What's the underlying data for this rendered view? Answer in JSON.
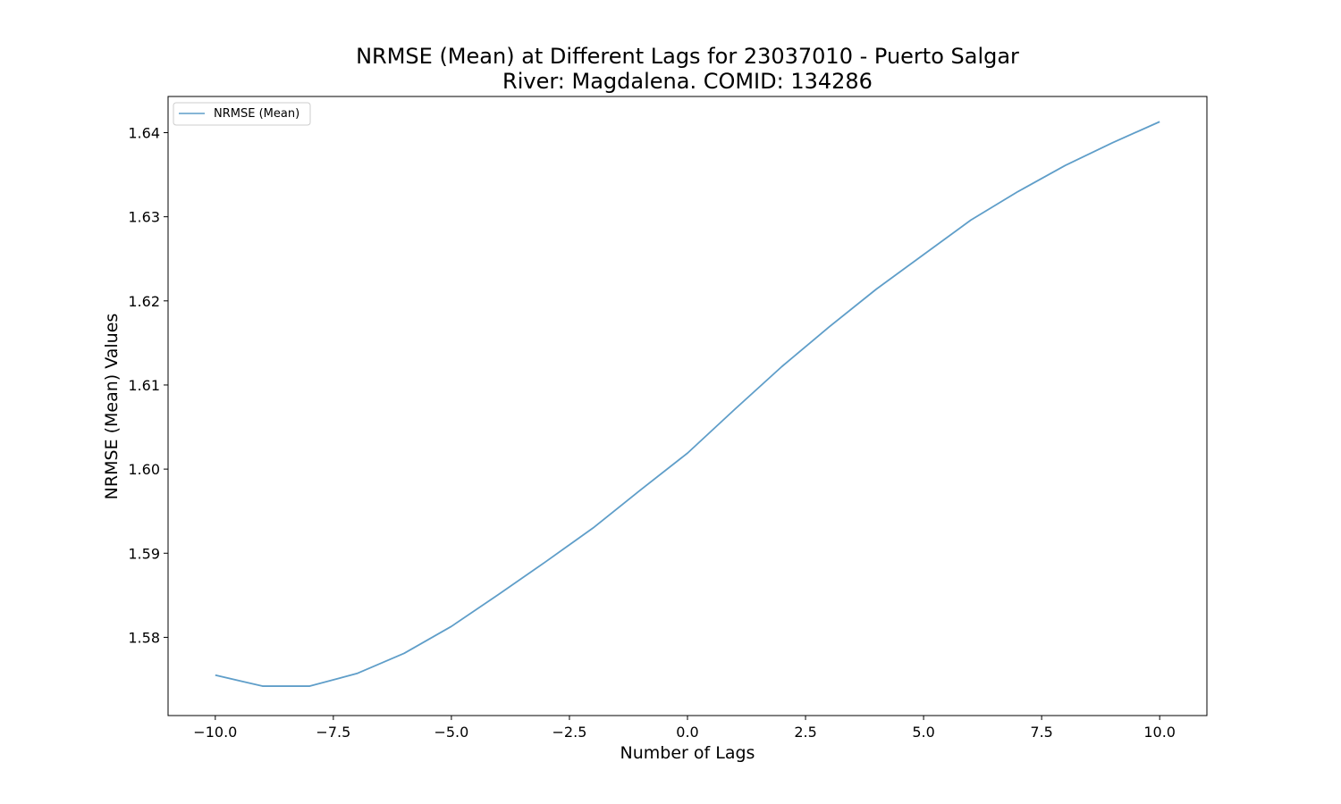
{
  "chart_data": {
    "type": "line",
    "title": "NRMSE (Mean) at Different Lags for 23037010 - Puerto Salgar",
    "subtitle": "River: Magdalena. COMID: 134286",
    "xlabel": "Number of Lags",
    "ylabel": "NRMSE (Mean) Values",
    "xlim": [
      -11,
      11
    ],
    "ylim": [
      1.5707,
      1.6443
    ],
    "x_ticks": [
      -10.0,
      -7.5,
      -5.0,
      -2.5,
      0.0,
      2.5,
      5.0,
      7.5,
      10.0
    ],
    "x_tick_labels": [
      "−10.0",
      "−7.5",
      "−5.0",
      "−2.5",
      "0.0",
      "2.5",
      "5.0",
      "7.5",
      "10.0"
    ],
    "y_ticks": [
      1.58,
      1.59,
      1.6,
      1.61,
      1.62,
      1.63,
      1.64
    ],
    "y_tick_labels": [
      "1.58",
      "1.59",
      "1.60",
      "1.61",
      "1.62",
      "1.63",
      "1.64"
    ],
    "grid": false,
    "legend_position": "top-left",
    "series": [
      {
        "name": "NRMSE (Mean)",
        "color": "#5f9ec9",
        "x": [
          -10,
          -9,
          -8,
          -7,
          -6,
          -5,
          -4,
          -3,
          -2,
          -1,
          0,
          1,
          2,
          3,
          4,
          5,
          6,
          7,
          8,
          9,
          10
        ],
        "values": [
          1.5755,
          1.5742,
          1.5742,
          1.5757,
          1.5781,
          1.5813,
          1.5851,
          1.589,
          1.593,
          1.5975,
          1.6019,
          1.6071,
          1.6122,
          1.6169,
          1.6214,
          1.6255,
          1.6296,
          1.633,
          1.6361,
          1.6388,
          1.6413
        ]
      }
    ]
  }
}
